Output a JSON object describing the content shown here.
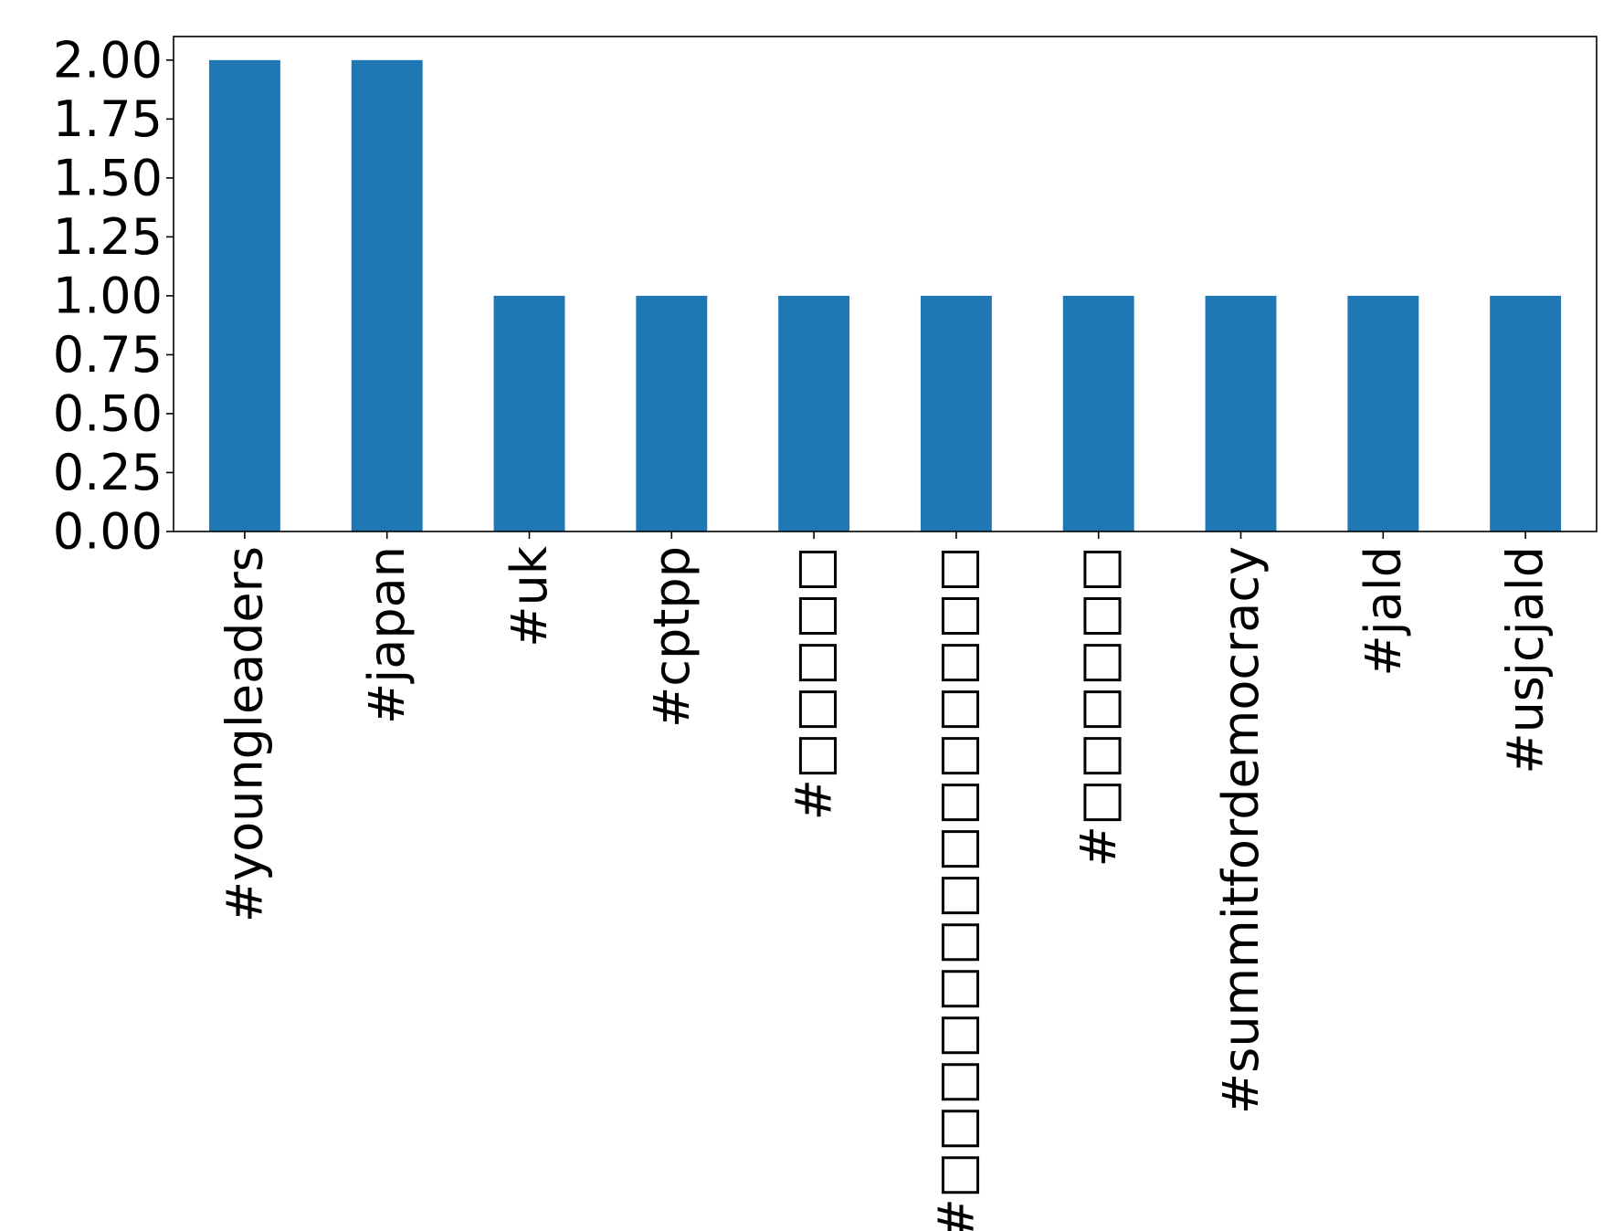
{
  "chart_data": {
    "type": "bar",
    "title": "",
    "xlabel": "",
    "ylabel": "",
    "categories": [
      "#youngleaders",
      "#japan",
      "#uk",
      "#cptpp",
      "#□□□□□",
      "#□□□□□□□□□□□□□□",
      "#□□□□□□",
      "#summitfordemocracy",
      "#jald",
      "#usjcjald"
    ],
    "values": [
      2,
      2,
      1,
      1,
      1,
      1,
      1,
      1,
      1,
      1
    ],
    "ylim": [
      0,
      2.1
    ],
    "yticks": [
      0.0,
      0.25,
      0.5,
      0.75,
      1.0,
      1.25,
      1.5,
      1.75,
      2.0
    ],
    "ytick_labels": [
      "0.00",
      "0.25",
      "0.50",
      "0.75",
      "1.00",
      "1.25",
      "1.50",
      "1.75",
      "2.00"
    ],
    "bar_color": "#1f77b4",
    "grid": false,
    "legend": "none"
  }
}
